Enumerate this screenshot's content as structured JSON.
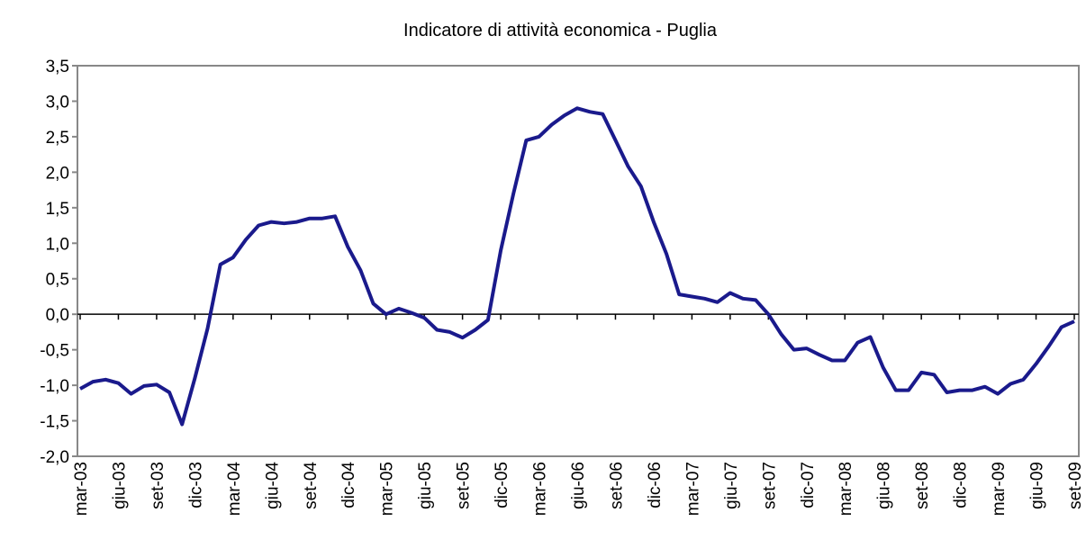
{
  "chart_data": {
    "type": "line",
    "title": "Indicatore di attività economica - Puglia",
    "categories": [
      "mar-03",
      null,
      null,
      "giu-03",
      null,
      null,
      "set-03",
      null,
      null,
      "dic-03",
      null,
      null,
      "mar-04",
      null,
      null,
      "giu-04",
      null,
      null,
      "set-04",
      null,
      null,
      "dic-04",
      null,
      null,
      "mar-05",
      null,
      null,
      "giu-05",
      null,
      null,
      "set-05",
      null,
      null,
      "dic-05",
      null,
      null,
      "mar-06",
      null,
      null,
      "giu-06",
      null,
      null,
      "set-06",
      null,
      null,
      "dic-06",
      null,
      null,
      "mar-07",
      null,
      null,
      "giu-07",
      null,
      null,
      "set-07",
      null,
      null,
      "dic-07",
      null,
      null,
      "mar-08",
      null,
      null,
      "giu-08",
      null,
      null,
      "set-08",
      null,
      null,
      "dic-08",
      null,
      null,
      "mar-09",
      null,
      null,
      "giu-09",
      null,
      null,
      "set-09"
    ],
    "series": [
      {
        "color": "#1a1a8c",
        "values": [
          -1.05,
          -0.95,
          -0.92,
          -0.97,
          -1.12,
          -1.01,
          -0.99,
          -1.1,
          -1.55,
          -0.9,
          -0.2,
          0.7,
          0.8,
          1.05,
          1.25,
          1.3,
          1.28,
          1.3,
          1.35,
          1.35,
          1.38,
          0.95,
          0.62,
          0.15,
          0.0,
          0.08,
          0.02,
          -0.05,
          -0.22,
          -0.25,
          -0.33,
          -0.22,
          -0.08,
          0.9,
          1.7,
          2.45,
          2.5,
          2.67,
          2.8,
          2.9,
          2.85,
          2.82,
          2.45,
          2.08,
          1.8,
          1.3,
          0.85,
          0.28,
          0.25,
          0.22,
          0.17,
          0.3,
          0.22,
          0.2,
          0.0,
          -0.28,
          -0.5,
          -0.48,
          -0.57,
          -0.65,
          -0.65,
          -0.4,
          -0.32,
          -0.75,
          -1.07,
          -1.07,
          -0.82,
          -0.85,
          -1.1,
          -1.07,
          -1.07,
          -1.02,
          -1.12,
          -0.98,
          -0.92,
          -0.7,
          -0.45,
          -0.18,
          -0.1
        ]
      }
    ],
    "ylim": [
      -2,
      3.5
    ],
    "yticks": [
      {
        "value": -2,
        "label": "-2,0"
      },
      {
        "value": -1.5,
        "label": "-1,5"
      },
      {
        "value": -1,
        "label": "-1,0"
      },
      {
        "value": -0.5,
        "label": "-0,5"
      },
      {
        "value": 0,
        "label": "0,0"
      },
      {
        "value": 0.5,
        "label": "0,5"
      },
      {
        "value": 1,
        "label": "1,0"
      },
      {
        "value": 1.5,
        "label": "1,5"
      },
      {
        "value": 2,
        "label": "2,0"
      },
      {
        "value": 2.5,
        "label": "2,5"
      },
      {
        "value": 3,
        "label": "3,0"
      },
      {
        "value": 3.5,
        "label": "3,5"
      }
    ],
    "grid": false
  }
}
